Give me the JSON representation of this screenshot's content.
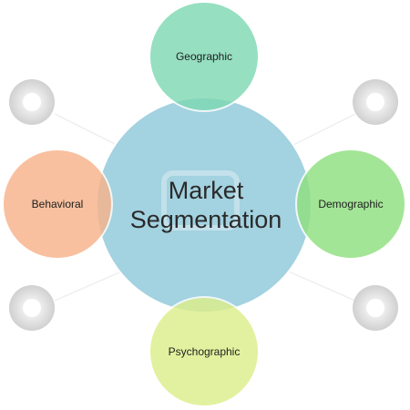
{
  "diagram": {
    "center": {
      "line1": "Market",
      "line2": "Segmentation"
    },
    "nodes": {
      "top": {
        "label": "Geographic"
      },
      "right": {
        "label": "Demographic"
      },
      "bottom": {
        "label": "Psychographic"
      },
      "left": {
        "label": "Behavioral"
      }
    }
  },
  "colors": {
    "center_fill": "#9fd0df",
    "geographic_fill": "#7fd9b4",
    "demographic_fill": "#8fe07f",
    "psychographic_fill": "#dcef8a",
    "behavioral_fill": "#f7b38a",
    "watermark": "#d0d0d0"
  }
}
